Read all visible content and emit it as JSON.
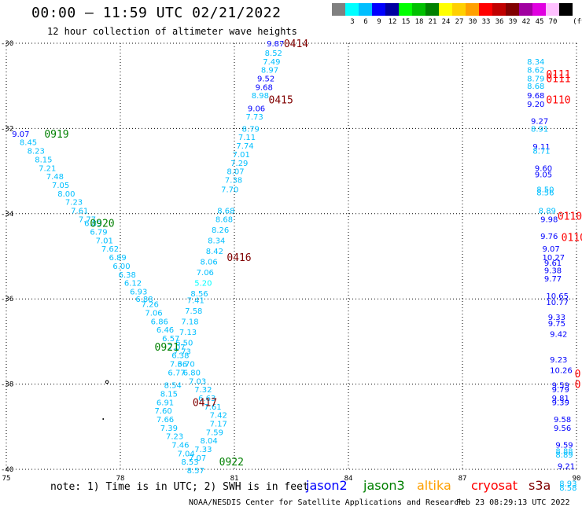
{
  "header": {
    "title": "00:00 — 11:59 UTC 02/21/2022",
    "subtitle": "12 hour collection of altimeter wave heights"
  },
  "scale": {
    "unit": "(ft)",
    "bins": [
      {
        "label": "",
        "color": "#808080"
      },
      {
        "label": "3",
        "color": "#00ffff"
      },
      {
        "label": "6",
        "color": "#00bfff"
      },
      {
        "label": "9",
        "color": "#0000ff"
      },
      {
        "label": "12",
        "color": "#0000a0"
      },
      {
        "label": "15",
        "color": "#00ff00"
      },
      {
        "label": "18",
        "color": "#00c000"
      },
      {
        "label": "21",
        "color": "#008000"
      },
      {
        "label": "24",
        "color": "#ffff00"
      },
      {
        "label": "27",
        "color": "#ffd000"
      },
      {
        "label": "30",
        "color": "#ffa000"
      },
      {
        "label": "33",
        "color": "#ff0000"
      },
      {
        "label": "36",
        "color": "#c00000"
      },
      {
        "label": "39",
        "color": "#800000"
      },
      {
        "label": "42",
        "color": "#a000a0"
      },
      {
        "label": "45",
        "color": "#e000e0"
      },
      {
        "label": "70",
        "color": "#ffc0ff"
      },
      {
        "label": "",
        "color": "#000000"
      }
    ]
  },
  "axes": {
    "lon_ticks": [
      "75",
      "78",
      "81",
      "84",
      "87",
      "90"
    ],
    "lat_ticks": [
      "-30",
      "-32",
      "-34",
      "-36",
      "-38",
      "-40"
    ]
  },
  "passes": [
    {
      "label": "0919",
      "lon": 76.0,
      "lat": -32.12,
      "color": "#008000"
    },
    {
      "label": "0920",
      "lon": 77.2,
      "lat": -34.22,
      "color": "#008000"
    },
    {
      "label": "0921",
      "lon": 78.9,
      "lat": -37.12,
      "color": "#008000"
    },
    {
      "label": "0922",
      "lon": 80.6,
      "lat": -39.82,
      "color": "#008000"
    },
    {
      "label": "0414",
      "lon": 82.3,
      "lat": -30.0,
      "color": "#800000"
    },
    {
      "label": "0415",
      "lon": 81.9,
      "lat": -31.32,
      "color": "#800000"
    },
    {
      "label": "0416",
      "lon": 80.8,
      "lat": -35.02,
      "color": "#800000"
    },
    {
      "label": "0417",
      "lon": 79.9,
      "lat": -38.42,
      "color": "#800000"
    },
    {
      "label": "0111",
      "lon": 89.2,
      "lat": -30.72,
      "color": "#ff0000"
    },
    {
      "label": "0111",
      "lon": 89.2,
      "lat": -30.82,
      "color": "#ff0000"
    },
    {
      "label": "0110",
      "lon": 89.2,
      "lat": -31.32,
      "color": "#ff0000"
    },
    {
      "label": "0110",
      "lon": 89.5,
      "lat": -34.05,
      "color": "#ff0000"
    },
    {
      "label": "0110",
      "lon": 89.6,
      "lat": -34.55,
      "color": "#ff0000"
    },
    {
      "label": "0",
      "lon": 89.95,
      "lat": -37.75,
      "color": "#ff0000"
    },
    {
      "label": "0",
      "lon": 89.95,
      "lat": -38.0,
      "color": "#ff0000"
    }
  ],
  "heights": [
    {
      "v": "9.07",
      "lon": 75.15,
      "lat": -32.12,
      "c": "#0000ff"
    },
    {
      "v": "8.45",
      "lon": 75.35,
      "lat": -32.32,
      "c": "#00bfff"
    },
    {
      "v": "8.23",
      "lon": 75.55,
      "lat": -32.52,
      "c": "#00bfff"
    },
    {
      "v": "8.15",
      "lon": 75.75,
      "lat": -32.72,
      "c": "#00bfff"
    },
    {
      "v": "7.21",
      "lon": 75.85,
      "lat": -32.92,
      "c": "#00bfff"
    },
    {
      "v": "7.48",
      "lon": 76.05,
      "lat": -33.12,
      "c": "#00bfff"
    },
    {
      "v": "7.05",
      "lon": 76.2,
      "lat": -33.32,
      "c": "#00bfff"
    },
    {
      "v": "8.00",
      "lon": 76.35,
      "lat": -33.52,
      "c": "#00bfff"
    },
    {
      "v": "7.23",
      "lon": 76.55,
      "lat": -33.72,
      "c": "#00bfff"
    },
    {
      "v": "7.61",
      "lon": 76.7,
      "lat": -33.92,
      "c": "#00bfff"
    },
    {
      "v": "7.77",
      "lon": 76.9,
      "lat": -34.12,
      "c": "#00bfff"
    },
    {
      "v": "6.89",
      "lon": 77.05,
      "lat": -34.22,
      "c": "#00bfff"
    },
    {
      "v": "6.79",
      "lon": 77.2,
      "lat": -34.42,
      "c": "#00bfff"
    },
    {
      "v": "7.01",
      "lon": 77.35,
      "lat": -34.62,
      "c": "#00bfff"
    },
    {
      "v": "7.62",
      "lon": 77.5,
      "lat": -34.82,
      "c": "#00bfff"
    },
    {
      "v": "6.89",
      "lon": 77.7,
      "lat": -35.02,
      "c": "#00bfff"
    },
    {
      "v": "6.00",
      "lon": 77.8,
      "lat": -35.22,
      "c": "#00bfff"
    },
    {
      "v": "6.38",
      "lon": 77.95,
      "lat": -35.42,
      "c": "#00bfff"
    },
    {
      "v": "6.12",
      "lon": 78.1,
      "lat": -35.62,
      "c": "#00bfff"
    },
    {
      "v": "6.93",
      "lon": 78.25,
      "lat": -35.82,
      "c": "#00bfff"
    },
    {
      "v": "6.88",
      "lon": 78.4,
      "lat": -36.0,
      "c": "#00bfff"
    },
    {
      "v": "7.26",
      "lon": 78.55,
      "lat": -36.12,
      "c": "#00bfff"
    },
    {
      "v": "7.06",
      "lon": 78.65,
      "lat": -36.32,
      "c": "#00bfff"
    },
    {
      "v": "6.86",
      "lon": 78.8,
      "lat": -36.52,
      "c": "#00bfff"
    },
    {
      "v": "6.46",
      "lon": 78.95,
      "lat": -36.72,
      "c": "#00bfff"
    },
    {
      "v": "6.57",
      "lon": 79.1,
      "lat": -36.92,
      "c": "#00bfff"
    },
    {
      "v": "7.07",
      "lon": 79.25,
      "lat": -37.12,
      "c": "#00bfff"
    },
    {
      "v": "6.38",
      "lon": 79.35,
      "lat": -37.32,
      "c": "#00bfff"
    },
    {
      "v": "6.70",
      "lon": 79.5,
      "lat": -37.52,
      "c": "#00bfff"
    },
    {
      "v": "6.80",
      "lon": 79.65,
      "lat": -37.72,
      "c": "#00bfff"
    },
    {
      "v": "7.03",
      "lon": 79.8,
      "lat": -37.92,
      "c": "#00bfff"
    },
    {
      "v": "7.32",
      "lon": 79.95,
      "lat": -38.12,
      "c": "#00bfff"
    },
    {
      "v": "6.63",
      "lon": 80.05,
      "lat": -38.32,
      "c": "#00bfff"
    },
    {
      "v": "7.61",
      "lon": 80.2,
      "lat": -38.52,
      "c": "#00bfff"
    },
    {
      "v": "7.42",
      "lon": 80.35,
      "lat": -38.72,
      "c": "#00bfff"
    },
    {
      "v": "7.17",
      "lon": 80.35,
      "lat": -38.92,
      "c": "#00bfff"
    },
    {
      "v": "7.59",
      "lon": 80.25,
      "lat": -39.12,
      "c": "#00bfff"
    },
    {
      "v": "8.04",
      "lon": 80.1,
      "lat": -39.32,
      "c": "#00bfff"
    },
    {
      "v": "7.33",
      "lon": 79.95,
      "lat": -39.52,
      "c": "#00bfff"
    },
    {
      "v": "7.07",
      "lon": 79.8,
      "lat": -39.72,
      "c": "#00bfff"
    },
    {
      "v": "9.87",
      "lon": 81.85,
      "lat": -30.0,
      "c": "#0000ff"
    },
    {
      "v": "8.52",
      "lon": 81.8,
      "lat": -30.22,
      "c": "#00bfff"
    },
    {
      "v": "7.49",
      "lon": 81.75,
      "lat": -30.42,
      "c": "#00bfff"
    },
    {
      "v": "8.97",
      "lon": 81.7,
      "lat": -30.62,
      "c": "#00bfff"
    },
    {
      "v": "9.52",
      "lon": 81.6,
      "lat": -30.82,
      "c": "#0000ff"
    },
    {
      "v": "9.68",
      "lon": 81.55,
      "lat": -31.02,
      "c": "#0000ff"
    },
    {
      "v": "8.98",
      "lon": 81.45,
      "lat": -31.22,
      "c": "#00bfff"
    },
    {
      "v": "9.06",
      "lon": 81.35,
      "lat": -31.52,
      "c": "#0000ff"
    },
    {
      "v": "7.73",
      "lon": 81.3,
      "lat": -31.72,
      "c": "#00bfff"
    },
    {
      "v": "8.79",
      "lon": 81.2,
      "lat": -32.0,
      "c": "#00bfff"
    },
    {
      "v": "7.11",
      "lon": 81.1,
      "lat": -32.2,
      "c": "#00bfff"
    },
    {
      "v": "7.74",
      "lon": 81.05,
      "lat": -32.4,
      "c": "#00bfff"
    },
    {
      "v": "7.01",
      "lon": 80.95,
      "lat": -32.6,
      "c": "#00bfff"
    },
    {
      "v": "7.29",
      "lon": 80.9,
      "lat": -32.8,
      "c": "#00bfff"
    },
    {
      "v": "8.07",
      "lon": 80.8,
      "lat": -33.0,
      "c": "#00bfff"
    },
    {
      "v": "7.38",
      "lon": 80.75,
      "lat": -33.2,
      "c": "#00bfff"
    },
    {
      "v": "7.70",
      "lon": 80.65,
      "lat": -33.42,
      "c": "#00bfff"
    },
    {
      "v": "8.68",
      "lon": 80.55,
      "lat": -33.92,
      "c": "#00bfff"
    },
    {
      "v": "8.68",
      "lon": 80.5,
      "lat": -34.12,
      "c": "#00bfff"
    },
    {
      "v": "8.26",
      "lon": 80.4,
      "lat": -34.37,
      "c": "#00bfff"
    },
    {
      "v": "8.34",
      "lon": 80.3,
      "lat": -34.62,
      "c": "#00bfff"
    },
    {
      "v": "8.42",
      "lon": 80.25,
      "lat": -34.87,
      "c": "#00bfff"
    },
    {
      "v": "8.06",
      "lon": 80.1,
      "lat": -35.12,
      "c": "#00bfff"
    },
    {
      "v": "7.06",
      "lon": 80.0,
      "lat": -35.37,
      "c": "#00bfff"
    },
    {
      "v": "5.20",
      "lon": 79.95,
      "lat": -35.62,
      "c": "#00ffff"
    },
    {
      "v": "8.56",
      "lon": 79.85,
      "lat": -35.87,
      "c": "#00bfff"
    },
    {
      "v": "7.41",
      "lon": 79.75,
      "lat": -36.02,
      "c": "#00bfff"
    },
    {
      "v": "7.58",
      "lon": 79.7,
      "lat": -36.27,
      "c": "#00bfff"
    },
    {
      "v": "7.18",
      "lon": 79.6,
      "lat": -36.52,
      "c": "#00bfff"
    },
    {
      "v": "7.13",
      "lon": 79.55,
      "lat": -36.77,
      "c": "#00bfff"
    },
    {
      "v": "6.50",
      "lon": 79.45,
      "lat": -37.02,
      "c": "#00bfff"
    },
    {
      "v": "7.73",
      "lon": 79.4,
      "lat": -37.22,
      "c": "#00bfff"
    },
    {
      "v": "7.36",
      "lon": 79.3,
      "lat": -37.52,
      "c": "#00bfff"
    },
    {
      "v": "6.77",
      "lon": 79.25,
      "lat": -37.72,
      "c": "#00bfff"
    },
    {
      "v": "8.54",
      "lon": 79.15,
      "lat": -38.02,
      "c": "#00bfff"
    },
    {
      "v": "8.15",
      "lon": 79.05,
      "lat": -38.22,
      "c": "#00bfff"
    },
    {
      "v": "6.91",
      "lon": 78.95,
      "lat": -38.42,
      "c": "#00bfff"
    },
    {
      "v": "7.60",
      "lon": 78.9,
      "lat": -38.62,
      "c": "#00bfff"
    },
    {
      "v": "7.66",
      "lon": 78.95,
      "lat": -38.82,
      "c": "#00bfff"
    },
    {
      "v": "7.39",
      "lon": 79.05,
      "lat": -39.02,
      "c": "#00bfff"
    },
    {
      "v": "7.23",
      "lon": 79.2,
      "lat": -39.22,
      "c": "#00bfff"
    },
    {
      "v": "7.46",
      "lon": 79.35,
      "lat": -39.42,
      "c": "#00bfff"
    },
    {
      "v": "7.04",
      "lon": 79.5,
      "lat": -39.62,
      "c": "#00bfff"
    },
    {
      "v": "8.53",
      "lon": 79.6,
      "lat": -39.82,
      "c": "#00bfff"
    },
    {
      "v": "8.57",
      "lon": 79.75,
      "lat": -40.02,
      "c": "#00bfff"
    },
    {
      "v": "8.34",
      "lon": 88.7,
      "lat": -30.42,
      "c": "#00bfff"
    },
    {
      "v": "8.62",
      "lon": 88.7,
      "lat": -30.62,
      "c": "#00bfff"
    },
    {
      "v": "8.79",
      "lon": 88.7,
      "lat": -30.82,
      "c": "#00bfff"
    },
    {
      "v": "8.68",
      "lon": 88.7,
      "lat": -31.0,
      "c": "#00bfff"
    },
    {
      "v": "9.68",
      "lon": 88.7,
      "lat": -31.22,
      "c": "#0000ff"
    },
    {
      "v": "9.20",
      "lon": 88.7,
      "lat": -31.42,
      "c": "#0000ff"
    },
    {
      "v": "9.27",
      "lon": 88.8,
      "lat": -31.82,
      "c": "#0000ff"
    },
    {
      "v": "8.91",
      "lon": 88.8,
      "lat": -32.0,
      "c": "#00bfff"
    },
    {
      "v": "9.11",
      "lon": 88.85,
      "lat": -32.42,
      "c": "#0000ff"
    },
    {
      "v": "8.71",
      "lon": 88.85,
      "lat": -32.52,
      "c": "#00bfff"
    },
    {
      "v": "9.60",
      "lon": 88.9,
      "lat": -32.92,
      "c": "#0000ff"
    },
    {
      "v": "9.05",
      "lon": 88.9,
      "lat": -33.07,
      "c": "#0000ff"
    },
    {
      "v": "8.50",
      "lon": 88.95,
      "lat": -33.42,
      "c": "#00bfff"
    },
    {
      "v": "8.56",
      "lon": 88.95,
      "lat": -33.5,
      "c": "#00bfff"
    },
    {
      "v": "8.89",
      "lon": 89.0,
      "lat": -33.92,
      "c": "#00bfff"
    },
    {
      "v": "9.98",
      "lon": 89.05,
      "lat": -34.12,
      "c": "#0000ff"
    },
    {
      "v": "9.76",
      "lon": 89.05,
      "lat": -34.52,
      "c": "#0000ff"
    },
    {
      "v": "9.07",
      "lon": 89.1,
      "lat": -34.82,
      "c": "#0000ff"
    },
    {
      "v": "10.27",
      "lon": 89.1,
      "lat": -35.02,
      "c": "#0000ff"
    },
    {
      "v": "9.61",
      "lon": 89.15,
      "lat": -35.15,
      "c": "#0000ff"
    },
    {
      "v": "9.38",
      "lon": 89.15,
      "lat": -35.32,
      "c": "#0000ff"
    },
    {
      "v": "9.77",
      "lon": 89.15,
      "lat": -35.52,
      "c": "#0000ff"
    },
    {
      "v": "10.65",
      "lon": 89.2,
      "lat": -35.92,
      "c": "#0000ff"
    },
    {
      "v": "10.77",
      "lon": 89.2,
      "lat": -36.07,
      "c": "#0000ff"
    },
    {
      "v": "9.33",
      "lon": 89.25,
      "lat": -36.42,
      "c": "#0000ff"
    },
    {
      "v": "9.75",
      "lon": 89.25,
      "lat": -36.57,
      "c": "#0000ff"
    },
    {
      "v": "9.42",
      "lon": 89.3,
      "lat": -36.82,
      "c": "#0000ff"
    },
    {
      "v": "9.23",
      "lon": 89.3,
      "lat": -37.42,
      "c": "#0000ff"
    },
    {
      "v": "10.26",
      "lon": 89.3,
      "lat": -37.67,
      "c": "#0000ff"
    },
    {
      "v": "9.59",
      "lon": 89.35,
      "lat": -38.02,
      "c": "#0000ff"
    },
    {
      "v": "9.79",
      "lon": 89.35,
      "lat": -38.12,
      "c": "#0000ff"
    },
    {
      "v": "9.81",
      "lon": 89.35,
      "lat": -38.32,
      "c": "#0000ff"
    },
    {
      "v": "9.39",
      "lon": 89.35,
      "lat": -38.42,
      "c": "#0000ff"
    },
    {
      "v": "9.58",
      "lon": 89.4,
      "lat": -38.82,
      "c": "#0000ff"
    },
    {
      "v": "9.56",
      "lon": 89.4,
      "lat": -39.02,
      "c": "#0000ff"
    },
    {
      "v": "9.59",
      "lon": 89.45,
      "lat": -39.42,
      "c": "#0000ff"
    },
    {
      "v": "8.88",
      "lon": 89.45,
      "lat": -39.57,
      "c": "#00bfff"
    },
    {
      "v": "8.89",
      "lon": 89.45,
      "lat": -39.65,
      "c": "#00bfff"
    },
    {
      "v": "9.21",
      "lon": 89.5,
      "lat": -39.92,
      "c": "#0000ff"
    },
    {
      "v": "8.93",
      "lon": 89.55,
      "lat": -40.32,
      "c": "#00bfff"
    },
    {
      "v": "8.58",
      "lon": 89.55,
      "lat": -40.42,
      "c": "#00bfff"
    }
  ],
  "legend": [
    {
      "name": "jason2",
      "color": "#0000ff"
    },
    {
      "name": "jason3",
      "color": "#008000"
    },
    {
      "name": "altika",
      "color": "#ffa000"
    },
    {
      "name": "cryosat",
      "color": "#ff0000"
    },
    {
      "name": "s3a",
      "color": "#800000"
    }
  ],
  "footer": {
    "note": "note: 1) Time is in UTC; 2) SWH is in feet",
    "credit": "NOAA/NESDIS Center for Satellite Applications and Research",
    "generated": "Feb 23 08:29:13 UTC 2022"
  }
}
